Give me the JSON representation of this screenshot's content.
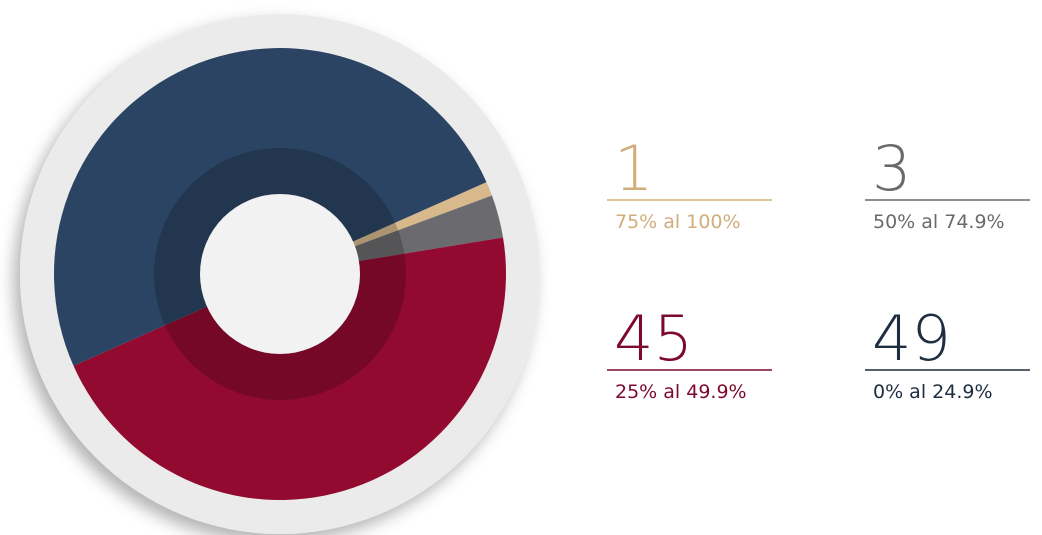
{
  "chart_data": {
    "type": "pie",
    "categories": [
      "75% al 100%",
      "50% al 74.9%",
      "25% al 49.9%",
      "0% al 24.9%"
    ],
    "values": [
      1,
      3,
      45,
      49
    ],
    "colors": [
      "#d8b98c",
      "#6b6b6f",
      "#930a30",
      "#2b4463"
    ],
    "label_colors": [
      "#d2ad7c",
      "#6a6a6a",
      "#7d0a2c",
      "#1e2d3f"
    ]
  }
}
